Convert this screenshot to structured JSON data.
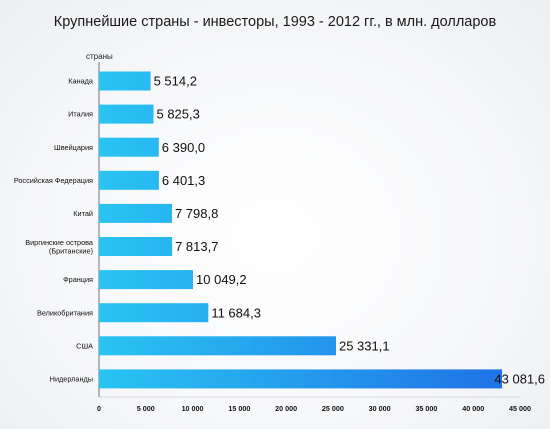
{
  "chart_data": {
    "type": "bar",
    "orientation": "horizontal",
    "title": "Крупнейшие страны - инвесторы, 1993 - 2012 гг., в млн. долларов",
    "ylabel": "страны",
    "xlabel": "",
    "xlim": [
      0,
      45000
    ],
    "x_ticks": [
      "0",
      "5 000",
      "10 000",
      "15 000",
      "20 000",
      "25 000",
      "30 000",
      "35 000",
      "40 000",
      "45 000"
    ],
    "categories": [
      [
        "Канада"
      ],
      [
        "Италия"
      ],
      [
        "Швейцария"
      ],
      [
        "Российская Федерация"
      ],
      [
        "Китай"
      ],
      [
        "Виргинские острова",
        "(Британские)"
      ],
      [
        "Франция"
      ],
      [
        "Великобритания"
      ],
      [
        "США"
      ],
      [
        "Нидерланды"
      ]
    ],
    "values": [
      5514.2,
      5825.3,
      6390.0,
      6401.3,
      7798.8,
      7813.7,
      10049.2,
      11684.3,
      25331.1,
      43081.6
    ],
    "value_labels": [
      "5 514,2",
      "5 825,3",
      "6 390,0",
      "6 401,3",
      "7 798,8",
      "7 813,7",
      "10 049,2",
      "11 684,3",
      "25 331,1",
      "43 081,6"
    ],
    "bar_color_start": "#29c4f2",
    "bar_color_end": "#1f6fe6",
    "grid": false,
    "legend": "none"
  }
}
